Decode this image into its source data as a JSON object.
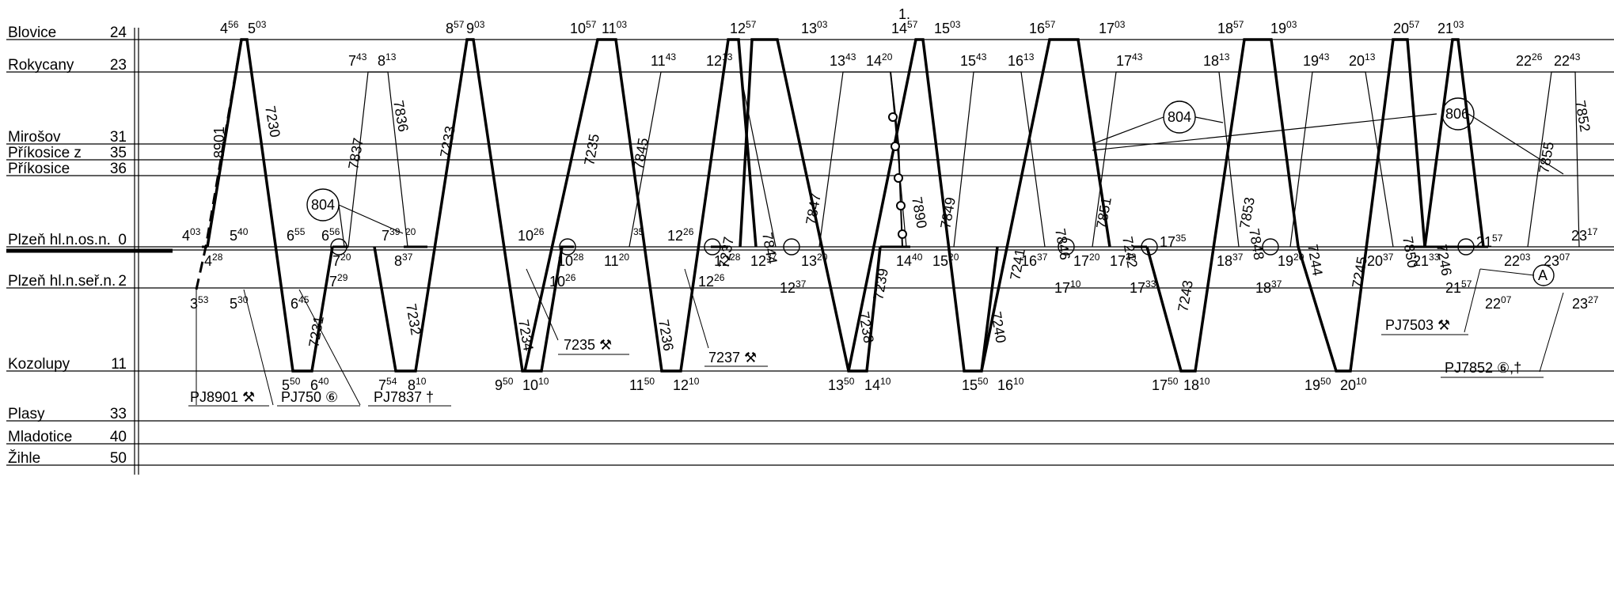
{
  "page_marker": "1.",
  "stations": [
    {
      "name": "Blovice",
      "km": "24"
    },
    {
      "name": "Rokycany",
      "km": "23"
    },
    {
      "name": "Mirošov",
      "km": "31"
    },
    {
      "name": "Příkosice z",
      "km": "35"
    },
    {
      "name": "Příkosice",
      "km": "36"
    },
    {
      "name": "Plzeň hl.n.os.n.",
      "km": "0"
    },
    {
      "name": "Plzeň hl.n.seř.n.",
      "km": "2"
    },
    {
      "name": "Kozolupy",
      "km": "11"
    },
    {
      "name": "Plasy",
      "km": "33"
    },
    {
      "name": "Mladotice",
      "km": "40"
    },
    {
      "name": "Žihle",
      "km": "50"
    }
  ],
  "trains": {
    "t8901": "8901",
    "t7230": "7230",
    "t7231": "7231",
    "t7232": "7232",
    "t7233": "7233",
    "t7234": "7234",
    "t7235": "7235",
    "t7236": "7236",
    "t7237": "7237",
    "t7238": "7238",
    "t7239": "7239",
    "t7240": "7240",
    "t7241": "7241",
    "t7242": "7242",
    "t7243": "7243",
    "t7244": "7244",
    "t7245": "7245",
    "t7246": "7246",
    "t7836": "7836",
    "t7837": "7837",
    "t7844": "7844",
    "t7845": "7845",
    "t7846": "7846",
    "t7847": "7847",
    "t7848": "7848",
    "t7849": "7849",
    "t7850": "7850",
    "t7851": "7851",
    "t7852": "7852",
    "t7853": "7853",
    "t7855": "7855",
    "t7890": "7890",
    "t804a": "804",
    "t804b": "804",
    "t806": "806"
  },
  "boxes": {
    "b7235": "7235 ⚒",
    "b7237": "7237 ⚒",
    "pj8901": "PJ8901 ⚒",
    "pj750": "PJ750 ⑥",
    "pj7837": "PJ7837 †",
    "pj7503": "PJ7503 ⚒",
    "pj7852": "PJ7852 ⑥,†",
    "circleA": "A"
  },
  "times": {
    "b0456": [
      "4",
      "56"
    ],
    "b0503": [
      "5",
      "03"
    ],
    "b0857": [
      "8",
      "57"
    ],
    "b0903": [
      "9",
      "03"
    ],
    "b1057": [
      "10",
      "57"
    ],
    "b1103": [
      "11",
      "03"
    ],
    "b1257": [
      "12",
      "57"
    ],
    "b1303": [
      "13",
      "03"
    ],
    "b1457": [
      "14",
      "57"
    ],
    "b1503": [
      "15",
      "03"
    ],
    "b1657": [
      "16",
      "57"
    ],
    "b1703": [
      "17",
      "03"
    ],
    "b1857": [
      "18",
      "57"
    ],
    "b1903": [
      "19",
      "03"
    ],
    "b2057": [
      "20",
      "57"
    ],
    "b2103": [
      "21",
      "03"
    ],
    "r0743": [
      "7",
      "43"
    ],
    "r0813": [
      "8",
      "13"
    ],
    "r1143": [
      "11",
      "43"
    ],
    "r1213": [
      "12",
      "13"
    ],
    "r1343": [
      "13",
      "43"
    ],
    "r1420": [
      "14",
      "20"
    ],
    "r1543": [
      "15",
      "43"
    ],
    "r1613": [
      "16",
      "13"
    ],
    "r1743": [
      "17",
      "43"
    ],
    "r1813": [
      "18",
      "13"
    ],
    "r1943": [
      "19",
      "43"
    ],
    "r2013": [
      "20",
      "13"
    ],
    "r2226": [
      "22",
      "26"
    ],
    "r2243": [
      "22",
      "43"
    ],
    "p0403": [
      "4",
      "03"
    ],
    "p0540": [
      "5",
      "40"
    ],
    "p0655": [
      "6",
      "55"
    ],
    "p0656": [
      "6",
      "56"
    ],
    "p0739": [
      "7",
      "39"
    ],
    "p20": [
      "",
      "20"
    ],
    "p1026": [
      "10",
      "26"
    ],
    "p35": [
      "",
      "35"
    ],
    "p1226": [
      "12",
      "26"
    ],
    "p2317": [
      "23",
      "17"
    ],
    "q0428": [
      "4",
      "28"
    ],
    "q0720": [
      "7",
      "20"
    ],
    "q0837": [
      "8",
      "37"
    ],
    "q1028": [
      "10",
      "28"
    ],
    "q1120": [
      "11",
      "20"
    ],
    "q1228": [
      "12",
      "28"
    ],
    "q1237": [
      "12",
      "37"
    ],
    "q1320": [
      "13",
      "20"
    ],
    "q1440": [
      "14",
      "40"
    ],
    "q1520": [
      "15",
      "20"
    ],
    "q1637": [
      "16",
      "37"
    ],
    "q1720": [
      "17",
      "20"
    ],
    "q1733": [
      "17",
      "33"
    ],
    "q1735": [
      "17",
      "35"
    ],
    "q1837": [
      "18",
      "37"
    ],
    "q1920": [
      "19",
      "20"
    ],
    "q2037": [
      "20",
      "37"
    ],
    "q2133": [
      "21",
      "33"
    ],
    "q2157": [
      "21",
      "57"
    ],
    "q2203": [
      "22",
      "03"
    ],
    "q2307": [
      "23",
      "07"
    ],
    "u0729": [
      "7",
      "29"
    ],
    "u1026": [
      "10",
      "26"
    ],
    "u1226": [
      "12",
      "26"
    ],
    "u1237": [
      "12",
      "37"
    ],
    "u1710": [
      "17",
      "10"
    ],
    "u1733": [
      "17",
      "33"
    ],
    "u1837": [
      "18",
      "37"
    ],
    "u2157": [
      "21",
      "57"
    ],
    "s0353": [
      "3",
      "53"
    ],
    "s0530": [
      "5",
      "30"
    ],
    "s0645": [
      "6",
      "45"
    ],
    "s2207": [
      "22",
      "07"
    ],
    "s2327": [
      "23",
      "27"
    ],
    "k0550": [
      "5",
      "50"
    ],
    "k0640": [
      "6",
      "40"
    ],
    "k0754": [
      "7",
      "54"
    ],
    "k0810": [
      "8",
      "10"
    ],
    "k0950": [
      "9",
      "50"
    ],
    "k1010": [
      "10",
      "10"
    ],
    "k1150": [
      "11",
      "50"
    ],
    "k1210": [
      "12",
      "10"
    ],
    "k1350": [
      "13",
      "50"
    ],
    "k1410": [
      "14",
      "10"
    ],
    "k1550": [
      "15",
      "50"
    ],
    "k1610": [
      "16",
      "10"
    ],
    "k1750": [
      "17",
      "50"
    ],
    "k1810": [
      "18",
      "10"
    ],
    "k1950": [
      "19",
      "50"
    ],
    "k2010": [
      "20",
      "10"
    ]
  }
}
